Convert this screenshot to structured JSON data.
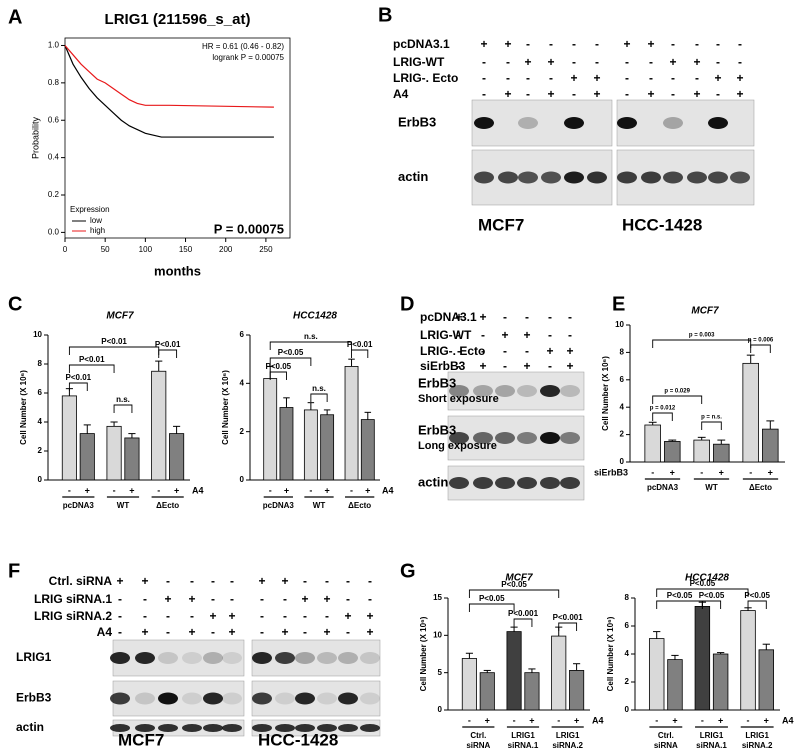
{
  "panel_labels": [
    "A",
    "B",
    "C",
    "D",
    "E",
    "F",
    "G"
  ],
  "chart_data": [
    {
      "type": "line",
      "title": "LRIG1 (211596_s_at)",
      "x_label": "months",
      "y_label": "Probability",
      "annotations": [
        "HR = 0.61 (0.46 - 0.82)",
        "logrank P = 0.00075",
        "P = 0.00075"
      ],
      "legend_title": "Expression",
      "x": [
        0,
        10,
        20,
        30,
        40,
        50,
        60,
        70,
        80,
        90,
        100,
        110,
        120,
        130,
        260
      ],
      "series": [
        {
          "name": "low",
          "color": "#000000",
          "values": [
            1,
            0.9,
            0.83,
            0.77,
            0.72,
            0.68,
            0.64,
            0.6,
            0.57,
            0.55,
            0.53,
            0.52,
            0.51,
            0.51,
            0.51
          ]
        },
        {
          "name": "high",
          "color": "#e8191b",
          "values": [
            1,
            0.95,
            0.9,
            0.86,
            0.82,
            0.8,
            0.77,
            0.74,
            0.71,
            0.69,
            0.68,
            0.68,
            0.68,
            0.68,
            0.67
          ]
        }
      ],
      "xlim": [
        0,
        280
      ],
      "xticks": [
        0,
        50,
        100,
        150,
        200,
        250
      ],
      "ylim": [
        -0.03,
        1.04
      ],
      "yticks": [
        {
          "value": 0,
          "label": "0.0"
        },
        {
          "value": 0.2,
          "label": "0.2"
        },
        {
          "value": 0.4,
          "label": "0.4"
        },
        {
          "value": 0.6,
          "label": "0.6"
        },
        {
          "value": 0.8,
          "label": "0.8"
        },
        {
          "value": 1,
          "label": "1.0"
        }
      ]
    },
    {
      "type": "bar",
      "title": "MCF7",
      "y_label": "Cell Number (X 10⁶)",
      "categories": [
        "-",
        "+",
        "-",
        "+",
        "-",
        "+"
      ],
      "groups": [
        [
          "pcDNA3"
        ],
        [
          "WT"
        ],
        [
          "ΔEcto"
        ]
      ],
      "factor_label": "A4",
      "factor_side": "right",
      "values": [
        5.8,
        3.2,
        3.7,
        2.9,
        7.5,
        3.2
      ],
      "errors": [
        0.5,
        0.6,
        0.3,
        0.3,
        0.7,
        0.5
      ],
      "colors": [
        "#d9d9d9",
        "#808080",
        "#d9d9d9",
        "#808080",
        "#d9d9d9",
        "#808080"
      ],
      "annotations": [
        "P<0.01",
        "P<0.01",
        "P<0.01",
        "n.s.",
        "P<0.01"
      ],
      "ylim": [
        0,
        10
      ],
      "yticks": [
        0,
        2,
        4,
        6,
        8,
        10
      ]
    },
    {
      "type": "bar",
      "title": "HCC1428",
      "y_label": "Cell Number (X 10⁶)",
      "categories": [
        "-",
        "+",
        "-",
        "+",
        "-",
        "+"
      ],
      "groups": [
        [
          "pcDNA3"
        ],
        [
          "WT"
        ],
        [
          "ΔEcto"
        ]
      ],
      "factor_label": "A4",
      "factor_side": "right",
      "values": [
        4.2,
        3.0,
        2.9,
        2.7,
        4.7,
        2.5
      ],
      "errors": [
        0.5,
        0.4,
        0.3,
        0.2,
        0.3,
        0.3
      ],
      "colors": [
        "#d9d9d9",
        "#808080",
        "#d9d9d9",
        "#808080",
        "#d9d9d9",
        "#808080"
      ],
      "annotations": [
        "n.s.",
        "P<0.05",
        "P<0.05",
        "n.s.",
        "P<0.01"
      ],
      "ylim": [
        0,
        6
      ],
      "yticks": [
        0,
        2,
        4,
        6
      ]
    },
    {
      "type": "bar",
      "title": "MCF7",
      "y_label": "Cell Number (X 10⁶)",
      "categories": [
        "-",
        "+",
        "-",
        "+",
        "-",
        "+"
      ],
      "groups": [
        [
          "pcDNA3"
        ],
        [
          "WT"
        ],
        [
          "ΔEcto"
        ]
      ],
      "factor_label": "siErbB3",
      "factor_side": "left",
      "values": [
        2.7,
        1.5,
        1.6,
        1.3,
        7.2,
        2.4
      ],
      "errors": [
        0.2,
        0.1,
        0.2,
        0.3,
        0.6,
        0.6
      ],
      "colors": [
        "#d9d9d9",
        "#808080",
        "#d9d9d9",
        "#808080",
        "#d9d9d9",
        "#808080"
      ],
      "annotations": [
        "p = 0.003",
        "p = 0.029",
        "p = 0.012",
        "p = n.s.",
        "p = 0.006"
      ],
      "ylim": [
        0,
        10
      ],
      "yticks": [
        0,
        2,
        4,
        6,
        8,
        10
      ]
    },
    {
      "type": "bar",
      "title": "MCF7",
      "y_label": "Cell Number (X 10⁶)",
      "categories": [
        "-",
        "+",
        "-",
        "+",
        "-",
        "+"
      ],
      "groups": [
        [
          "Ctrl.",
          "siRNA"
        ],
        [
          "LRIG1",
          "siRNA.1"
        ],
        [
          "LRIG1",
          "siRNA.2"
        ]
      ],
      "factor_label": "A4",
      "factor_side": "right",
      "values": [
        6.9,
        5.0,
        10.5,
        5.0,
        9.9,
        5.3
      ],
      "errors": [
        0.7,
        0.3,
        0.6,
        0.5,
        1.2,
        0.9
      ],
      "colors": [
        "#d9d9d9",
        "#808080",
        "#404040",
        "#808080",
        "#d9d9d9",
        "#808080"
      ],
      "annotations": [
        "P<0.05",
        "P<0.05",
        "P<0.001",
        "P<0.001"
      ],
      "ylim": [
        0,
        15
      ],
      "yticks": [
        0,
        5,
        10,
        15
      ]
    },
    {
      "type": "bar",
      "title": "HCC1428",
      "y_label": "Cell Number (X 10⁶)",
      "categories": [
        "-",
        "+",
        "-",
        "+",
        "-",
        "+"
      ],
      "groups": [
        [
          "Ctrl.",
          "siRNA"
        ],
        [
          "LRIG1",
          "siRNA.1"
        ],
        [
          "LRIG1",
          "siRNA.2"
        ]
      ],
      "factor_label": "A4",
      "factor_side": "right",
      "values": [
        5.1,
        3.6,
        7.4,
        4.0,
        7.1,
        4.3
      ],
      "errors": [
        0.5,
        0.3,
        0.3,
        0.1,
        0.2,
        0.4
      ],
      "colors": [
        "#d9d9d9",
        "#808080",
        "#404040",
        "#808080",
        "#d9d9d9",
        "#808080"
      ],
      "annotations": [
        "P<0.05",
        "P<0.05",
        "P<0.05",
        "P<0.05"
      ],
      "ylim": [
        0,
        8
      ],
      "yticks": [
        0,
        2,
        4,
        6,
        8
      ]
    }
  ],
  "blots": [
    {
      "rows": [
        {
          "label": "pcDNA3.1",
          "signs": [
            "+",
            "+",
            "-",
            "-",
            "-",
            "-",
            "+",
            "+",
            "-",
            "-",
            "-",
            "-"
          ]
        },
        {
          "label": "LRIG-WT",
          "signs": [
            "-",
            "-",
            "+",
            "+",
            "-",
            "-",
            "-",
            "-",
            "+",
            "+",
            "-",
            "-"
          ]
        },
        {
          "label": "LRIG-. Ecto",
          "signs": [
            "-",
            "-",
            "-",
            "-",
            "+",
            "+",
            "-",
            "-",
            "-",
            "-",
            "+",
            "+"
          ]
        },
        {
          "label": "A4",
          "signs": [
            "-",
            "+",
            "-",
            "+",
            "-",
            "+",
            "-",
            "+",
            "-",
            "+",
            "-",
            "+"
          ]
        }
      ],
      "blot_labels": [
        [
          "ErbB3"
        ],
        [
          "actin"
        ]
      ],
      "cell_lines": [
        "MCF7",
        "HCC-1428"
      ]
    },
    {
      "rows": [
        {
          "label": "pcDNA3.1",
          "signs": [
            "+",
            "+",
            "-",
            "-",
            "-",
            "-"
          ]
        },
        {
          "label": "LRIG-WT",
          "signs": [
            "-",
            "-",
            "+",
            "+",
            "-",
            "-"
          ]
        },
        {
          "label": "LRIG-. Ecto",
          "signs": [
            "-",
            "-",
            "-",
            "-",
            "+",
            "+"
          ]
        },
        {
          "label": "siErbB3",
          "signs": [
            "-",
            "+",
            "-",
            "+",
            "-",
            "+"
          ]
        }
      ],
      "blot_labels": [
        [
          "ErbB3",
          "Short exposure"
        ],
        [
          "ErbB3",
          "Long exposure"
        ],
        [
          "actin"
        ]
      ],
      "cell_lines": []
    },
    {
      "rows": [
        {
          "label": "Ctrl. siRNA",
          "signs": [
            "+",
            "+",
            "-",
            "-",
            "-",
            "-",
            "+",
            "+",
            "-",
            "-",
            "-",
            "-"
          ]
        },
        {
          "label": "LRIG siRNA.1",
          "signs": [
            "-",
            "-",
            "+",
            "+",
            "-",
            "-",
            "-",
            "-",
            "+",
            "+",
            "-",
            "-"
          ]
        },
        {
          "label": "LRIG siRNA.2",
          "signs": [
            "-",
            "-",
            "-",
            "-",
            "+",
            "+",
            "-",
            "-",
            "-",
            "-",
            "+",
            "+"
          ]
        },
        {
          "label": "A4",
          "signs": [
            "-",
            "+",
            "-",
            "+",
            "-",
            "+",
            "-",
            "+",
            "-",
            "+",
            "-",
            "+"
          ]
        }
      ],
      "blot_labels": [
        [
          "LRIG1"
        ],
        [
          "ErbB3"
        ],
        [
          "actin"
        ]
      ],
      "cell_lines": [
        "MCF7",
        "HCC-1428"
      ]
    }
  ]
}
